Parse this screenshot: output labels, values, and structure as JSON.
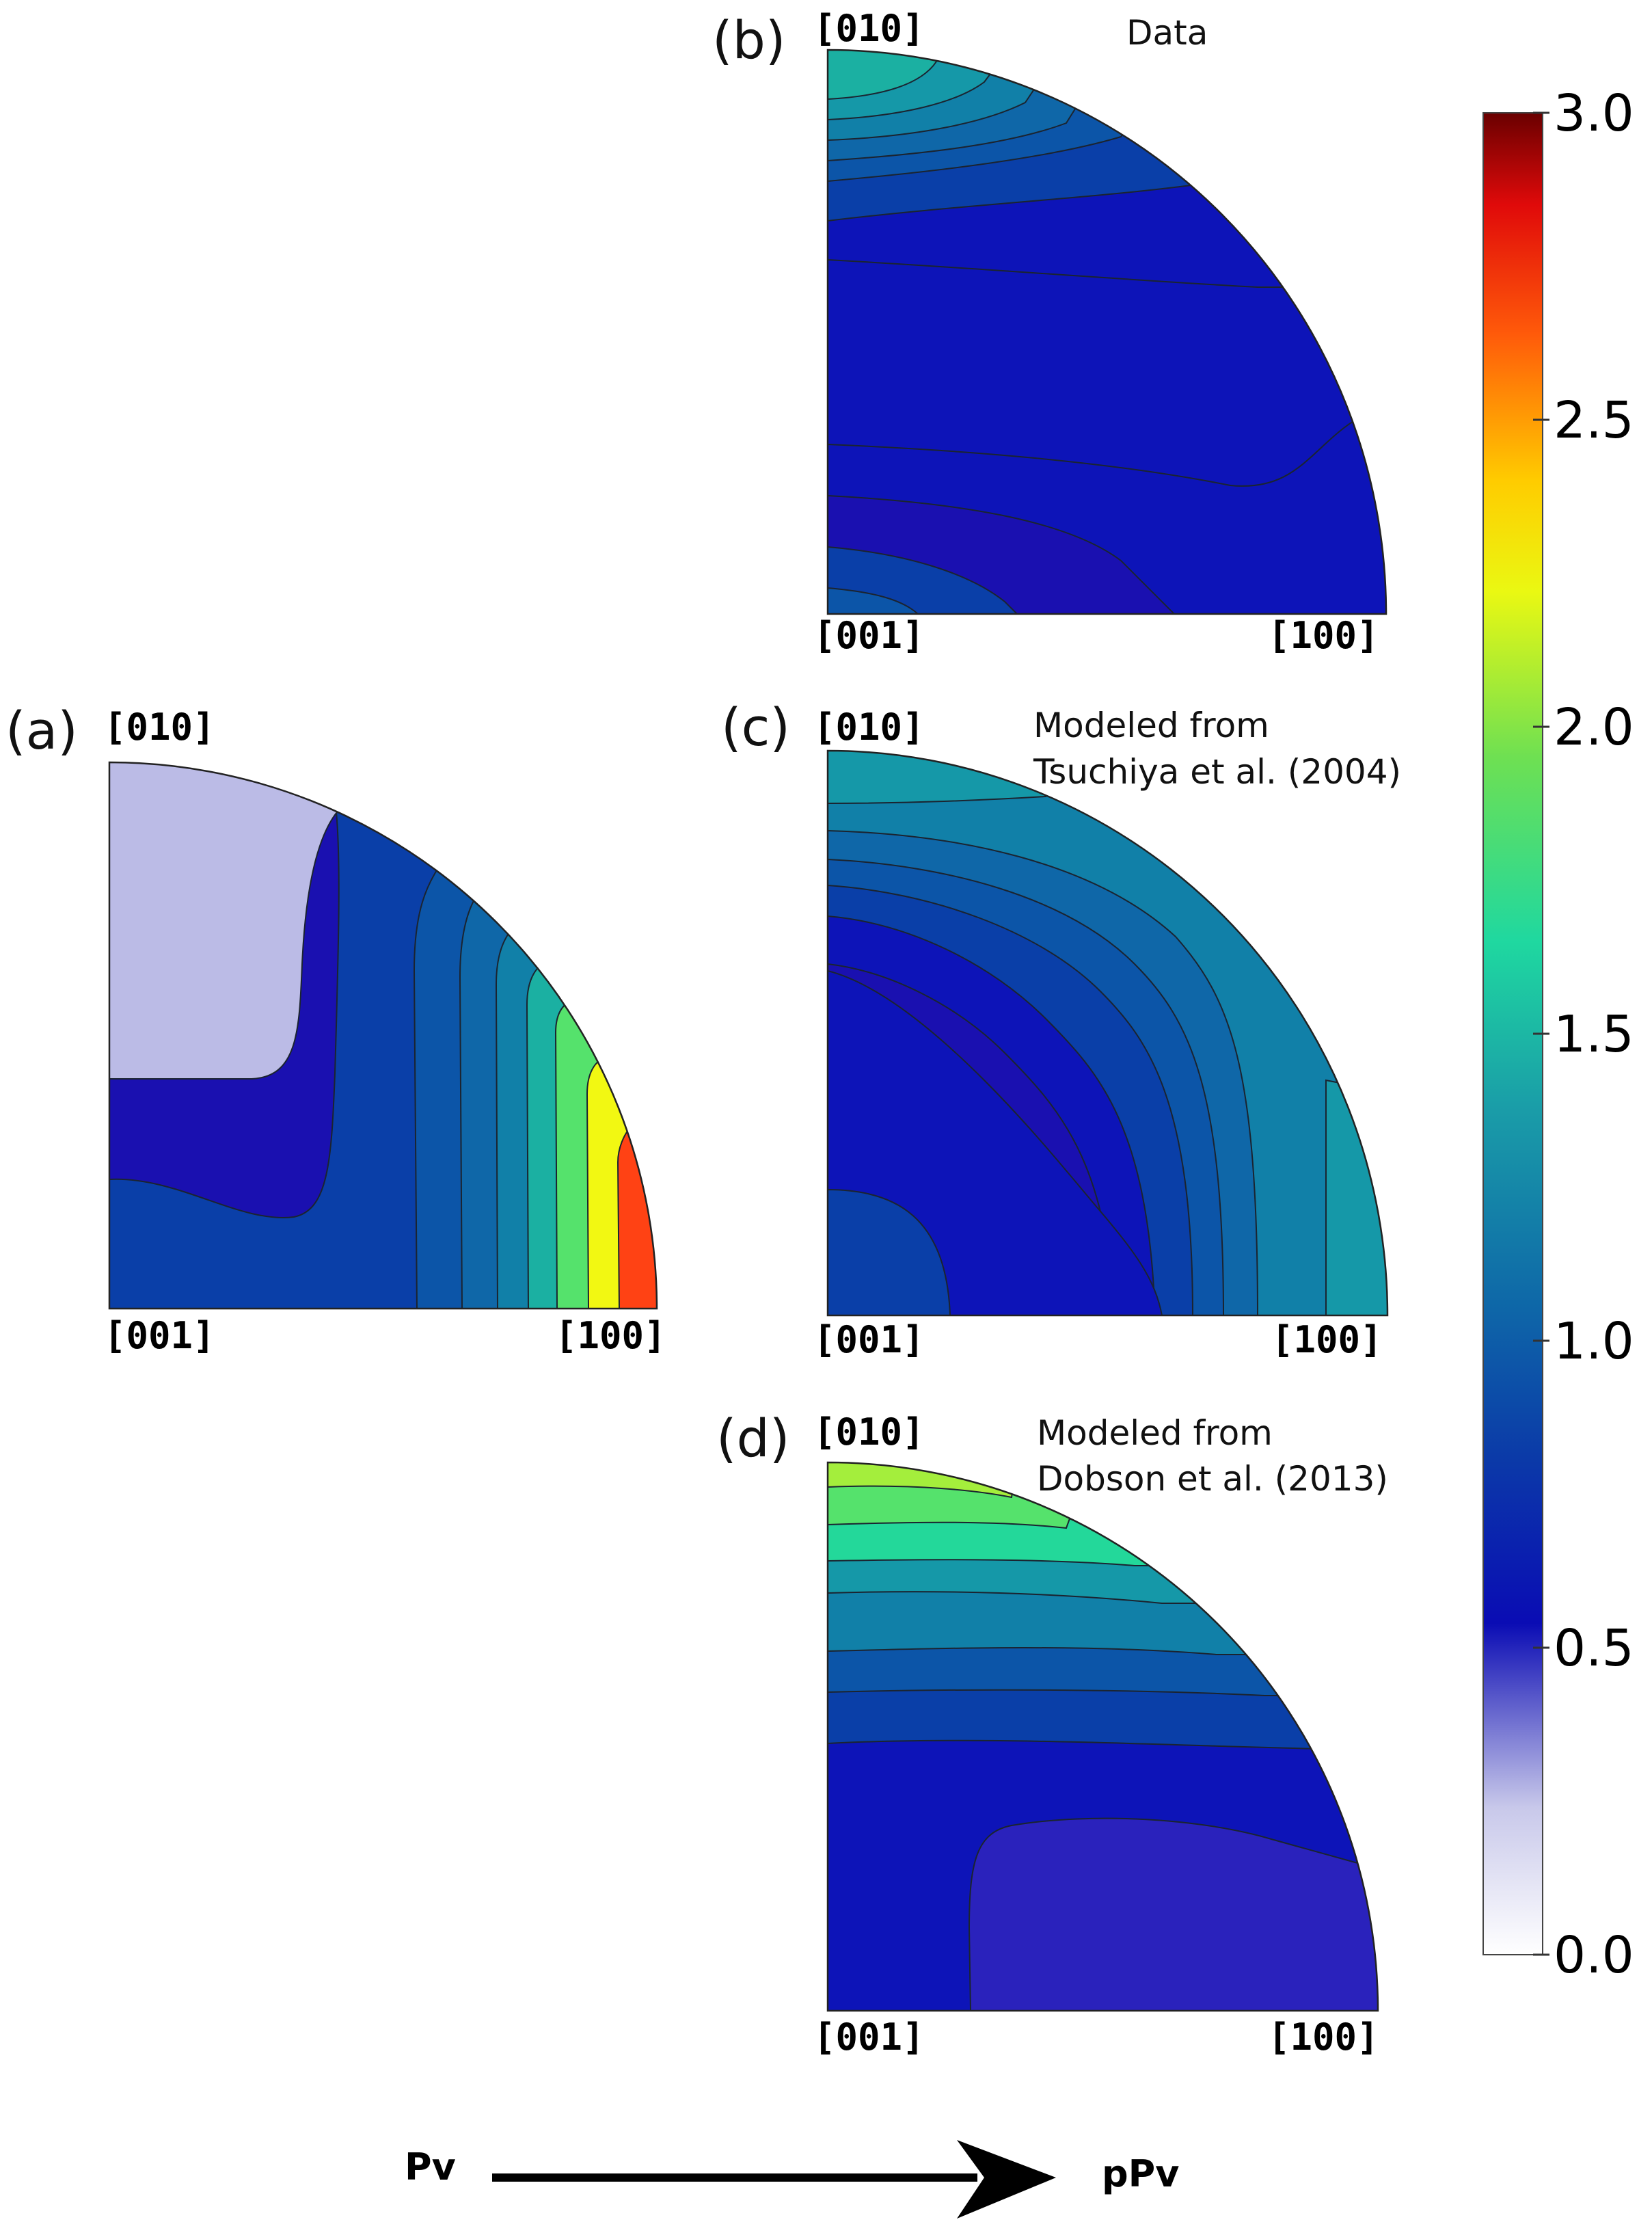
{
  "chart_data": [
    {
      "type": "heatmap",
      "panel": "(a)",
      "caption": [],
      "axes": {
        "top": "[010]",
        "bottom_left": "[001]",
        "bottom_right": "[100]"
      },
      "levels_description": "Vertical-ish bands increasing toward [100]: ~0.1 near [010]/[001] region, rising to ~2.7 at [100]",
      "bands": [
        {
          "region": "upper-left",
          "value": 0.2
        },
        {
          "region": "middle",
          "value": 0.55
        },
        {
          "region": "lower-left",
          "value": 0.75
        },
        {
          "region": "arc-1",
          "value": 0.95
        },
        {
          "region": "arc-2",
          "value": 1.2
        },
        {
          "region": "arc-3",
          "value": 1.45
        },
        {
          "region": "arc-4",
          "value": 1.7
        },
        {
          "region": "arc-5",
          "value": 2.0
        },
        {
          "region": "arc-6",
          "value": 2.35
        },
        {
          "region": "near-[100]",
          "value": 2.7
        }
      ]
    },
    {
      "type": "heatmap",
      "panel": "(b)",
      "caption": [
        "Data"
      ],
      "axes": {
        "top": "[010]",
        "bottom_left": "[001]",
        "bottom_right": "[100]"
      },
      "bands": [
        {
          "region": "near-[010]",
          "value": 1.4
        },
        {
          "region": "top-2",
          "value": 1.2
        },
        {
          "region": "top-3",
          "value": 1.05
        },
        {
          "region": "top-4",
          "value": 0.9
        },
        {
          "region": "top-5",
          "value": 0.8
        },
        {
          "region": "top-6",
          "value": 0.7
        },
        {
          "region": "upper",
          "value": 0.6
        },
        {
          "region": "center",
          "value": 0.5
        },
        {
          "region": "lower",
          "value": 0.58
        },
        {
          "region": "near-[001]",
          "value": 0.7
        }
      ]
    },
    {
      "type": "heatmap",
      "panel": "(c)",
      "caption": [
        "Modeled from",
        "Tsuchiya et al. (2004)"
      ],
      "axes": {
        "top": "[010]",
        "bottom_left": "[001]",
        "bottom_right": "[100]"
      },
      "bands": [
        {
          "region": "near-[010]",
          "value": 1.5
        },
        {
          "region": "outer-arc",
          "value": 1.3
        },
        {
          "region": "arc-2",
          "value": 1.15
        },
        {
          "region": "arc-3",
          "value": 1.0
        },
        {
          "region": "arc-4",
          "value": 0.9
        },
        {
          "region": "arc-5",
          "value": 0.8
        },
        {
          "region": "arc-6",
          "value": 0.7
        },
        {
          "region": "center",
          "value": 0.5
        },
        {
          "region": "near-[001]",
          "value": 0.65
        },
        {
          "region": "near-[100]",
          "value": 1.4
        }
      ]
    },
    {
      "type": "heatmap",
      "panel": "(d)",
      "caption": [
        "Modeled from",
        "Dobson et al. (2013)"
      ],
      "axes": {
        "top": "[010]",
        "bottom_left": "[001]",
        "bottom_right": "[100]"
      },
      "bands": [
        {
          "region": "near-[010]",
          "value": 2.2
        },
        {
          "region": "top-2",
          "value": 1.9
        },
        {
          "region": "top-3",
          "value": 1.6
        },
        {
          "region": "top-4",
          "value": 1.35
        },
        {
          "region": "top-5",
          "value": 1.1
        },
        {
          "region": "top-6",
          "value": 0.9
        },
        {
          "region": "upper",
          "value": 0.7
        },
        {
          "region": "middle",
          "value": 0.52
        },
        {
          "region": "lower-right",
          "value": 0.4
        }
      ]
    }
  ],
  "colorbar": {
    "min": 0.0,
    "max": 3.0,
    "ticks": [
      "0.0",
      "0.5",
      "1.0",
      "1.5",
      "2.0",
      "2.5",
      "3.0"
    ],
    "colormap": "white-purple-blue-cyan-green-yellow-red-darkred"
  },
  "arrow": {
    "from": "Pv",
    "to": "pPv"
  },
  "colors": {
    "c_lavender": "#bbbbe6",
    "c_navy1": "#1a10b0",
    "c_navy2": "#0d14b8",
    "c_blue1": "#0a3fa8",
    "c_blue2": "#0c55a8",
    "c_blue3": "#0f67a8",
    "c_teal1": "#1180a8",
    "c_teal2": "#1598a8",
    "c_teal3": "#1bb0a2",
    "c_green1": "#23d89a",
    "c_green2": "#55e26c",
    "c_lime": "#a4ee3c",
    "c_yellow": "#f2f812",
    "c_red": "#ff4214",
    "c_purple": "#2a22bc"
  }
}
